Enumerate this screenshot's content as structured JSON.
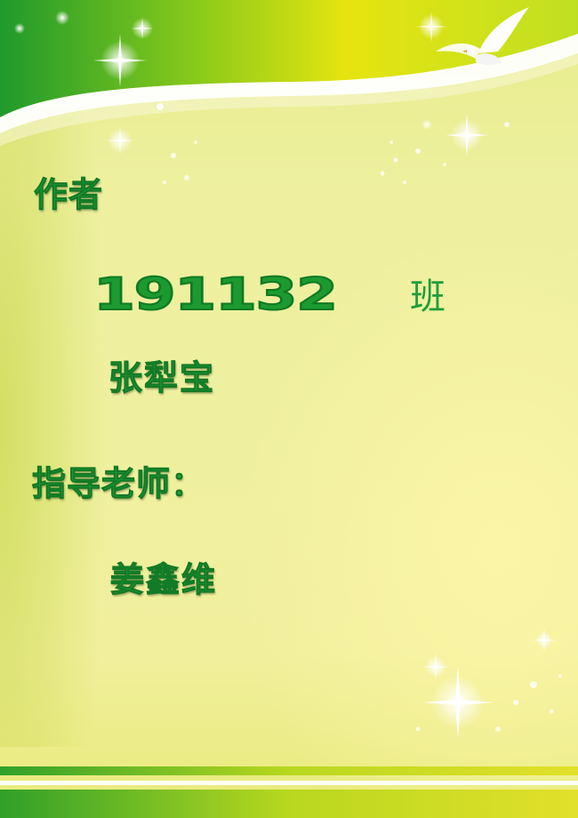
{
  "author": {
    "heading": "作者",
    "class_number": "191132",
    "class_suffix": "班",
    "name": "张犁宝"
  },
  "advisor": {
    "heading": "指导老师：",
    "name": "姜鑫维"
  },
  "colors": {
    "text_green": "#22a23a",
    "banner_green": "#3daa2a",
    "background_yellow": "#eff09f"
  },
  "decorations": {
    "top_banner": "green-swoosh",
    "dove": "dove-icon",
    "sparkles": "sparkle-icon"
  }
}
